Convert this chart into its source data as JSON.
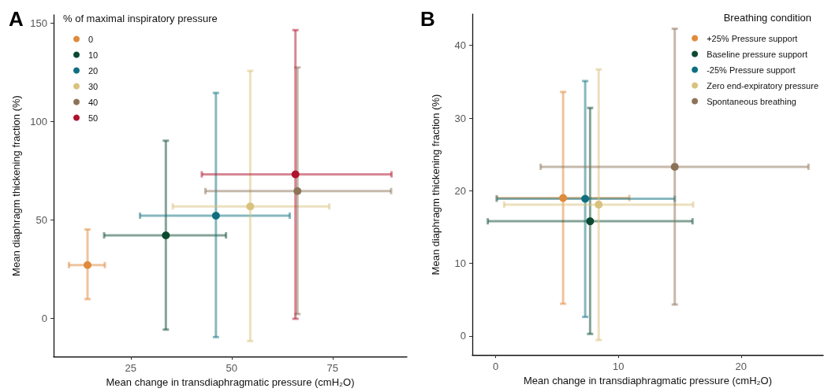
{
  "chart_data": [
    {
      "type": "scatter",
      "title": "A",
      "xlabel": "Mean change in transdiaphragmatic pressure (cmH₂O)",
      "ylabel": "Mean diaphragm thickening fraction (%)",
      "legend_title": "% of maximal inspiratory pressure",
      "legend": "top left",
      "grid": false,
      "marker": "circle",
      "xlim": [
        5.9,
        93.4
      ],
      "xticks": [
        25,
        50,
        75
      ],
      "ylim": [
        -19.6,
        154
      ],
      "yticks": [
        0,
        50,
        100,
        150
      ],
      "series": [
        {
          "name": "0",
          "color": "#e08a3c",
          "x": [
            14.3
          ],
          "values": [
            26.9
          ],
          "errors": [
            [
              9.6,
              45
            ]
          ],
          "xerrors": [
            [
              9.7,
              18.6
            ]
          ]
        },
        {
          "name": "10",
          "color": "#0b4a30",
          "x": [
            33.7
          ],
          "values": [
            42
          ],
          "errors": [
            [
              -5.9,
              90.1
            ]
          ],
          "xerrors": [
            [
              18.4,
              48.6
            ]
          ]
        },
        {
          "name": "20",
          "color": "#0f6f80",
          "x": [
            46.1
          ],
          "values": [
            52
          ],
          "errors": [
            [
              -9.7,
              114.4
            ]
          ],
          "xerrors": [
            [
              27.3,
              64.4
            ]
          ]
        },
        {
          "name": "30",
          "color": "#d9c27e",
          "x": [
            54.6
          ],
          "values": [
            56.7
          ],
          "errors": [
            [
              -11.7,
              125.6
            ]
          ],
          "xerrors": [
            [
              35.4,
              74.2
            ]
          ]
        },
        {
          "name": "40",
          "color": "#8c7358",
          "x": [
            66.3
          ],
          "values": [
            64.5
          ],
          "errors": [
            [
              2,
              127.3
            ]
          ],
          "xerrors": [
            [
              43.5,
              89.5
            ]
          ]
        },
        {
          "name": "50",
          "color": "#b0122c",
          "x": [
            65.8
          ],
          "values": [
            73
          ],
          "errors": [
            [
              -0.4,
              146.3
            ]
          ],
          "xerrors": [
            [
              42.6,
              89.6
            ]
          ]
        }
      ]
    },
    {
      "type": "scatter",
      "title": "B",
      "xlabel": "Mean change in transdiaphragmatic pressure (cmH₂O)",
      "ylabel": "Mean diaphragm thickening fraction (%)",
      "legend_title": "Breathing condition",
      "legend": "top right",
      "grid": false,
      "marker": "circle",
      "xlim": [
        -1.9,
        26.7
      ],
      "xticks": [
        0,
        10,
        20
      ],
      "ylim": [
        -2.6,
        44.3
      ],
      "yticks": [
        0,
        10,
        20,
        30,
        40
      ],
      "series": [
        {
          "name": "+25% Pressure support",
          "color": "#e08a3c",
          "x": [
            5.5
          ],
          "values": [
            19
          ],
          "errors": [
            [
              4.45,
              33.6
            ]
          ],
          "xerrors": [
            [
              0.09,
              10.9
            ]
          ]
        },
        {
          "name": "Baseline pressure support",
          "color": "#0b4a30",
          "x": [
            7.7
          ],
          "values": [
            15.8
          ],
          "errors": [
            [
              0.3,
              31.4
            ]
          ],
          "xerrors": [
            [
              -0.64,
              16.05
            ]
          ]
        },
        {
          "name": "-25% Pressure support",
          "color": "#0f6f80",
          "x": [
            7.3
          ],
          "values": [
            18.9
          ],
          "errors": [
            [
              2.64,
              35.1
            ]
          ],
          "xerrors": [
            [
              0.09,
              14.6
            ]
          ]
        },
        {
          "name": "Zero end-expiratory pressure",
          "color": "#d9c27e",
          "x": [
            8.4
          ],
          "values": [
            18.1
          ],
          "errors": [
            [
              -0.54,
              36.7
            ]
          ],
          "xerrors": [
            [
              0.69,
              16.1
            ]
          ]
        },
        {
          "name": "Spontaneous breathing",
          "color": "#8c7358",
          "x": [
            14.6
          ],
          "values": [
            23.3
          ],
          "errors": [
            [
              4.34,
              42.3
            ]
          ],
          "xerrors": [
            [
              3.67,
              25.5
            ]
          ]
        }
      ]
    }
  ]
}
